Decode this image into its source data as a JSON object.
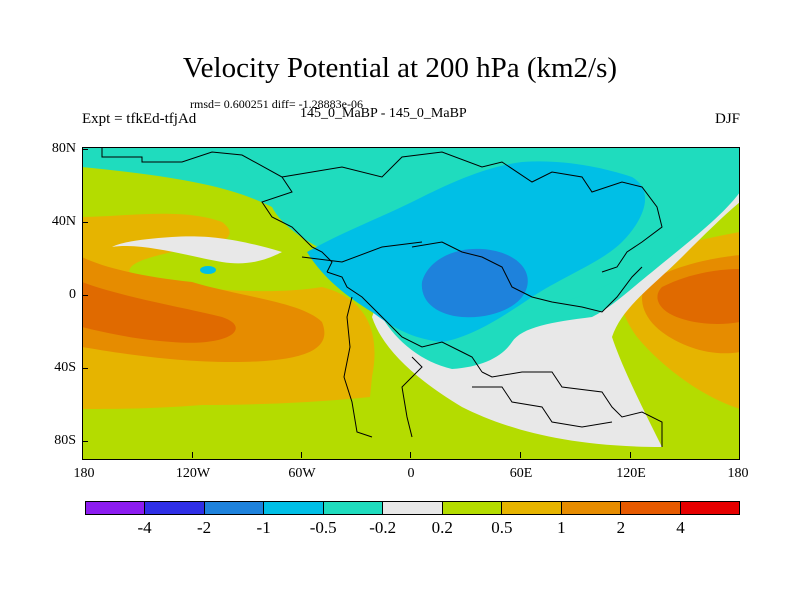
{
  "title": "Velocity Potential at 200 hPa (km2/s)",
  "stats_line": "rmsd= 0.600251 diff= -1.28883e-06",
  "experiment": "Expt = tfkEd-tfjAd",
  "period": "145_0_MaBP - 145_0_MaBP",
  "season": "DJF",
  "y_axis_labels": [
    "80N",
    "40N",
    "0",
    "40S",
    "80S"
  ],
  "x_axis_labels": [
    "180",
    "120W",
    "60W",
    "0",
    "60E",
    "120E",
    "180"
  ],
  "colorbar": {
    "colors": [
      "#8c1cf0",
      "#2f2fe6",
      "#1e82dc",
      "#00bfe6",
      "#1fdcbe",
      "#e8e8e8",
      "#b4dc00",
      "#e6b400",
      "#e68c00",
      "#e65a00",
      "#e60000"
    ],
    "labels": [
      "-4",
      "-2",
      "-1",
      "-0.5",
      "-0.2",
      "0.2",
      "0.5",
      "1",
      "2",
      "4"
    ]
  },
  "map_fields": {
    "background_level": "0.5",
    "levels": [
      "-0.5 to -0.2",
      "-1 to -0.5",
      "-2 to -1",
      "-0.2 to 0.2",
      "0.5 to 1",
      "1 to 2"
    ]
  }
}
